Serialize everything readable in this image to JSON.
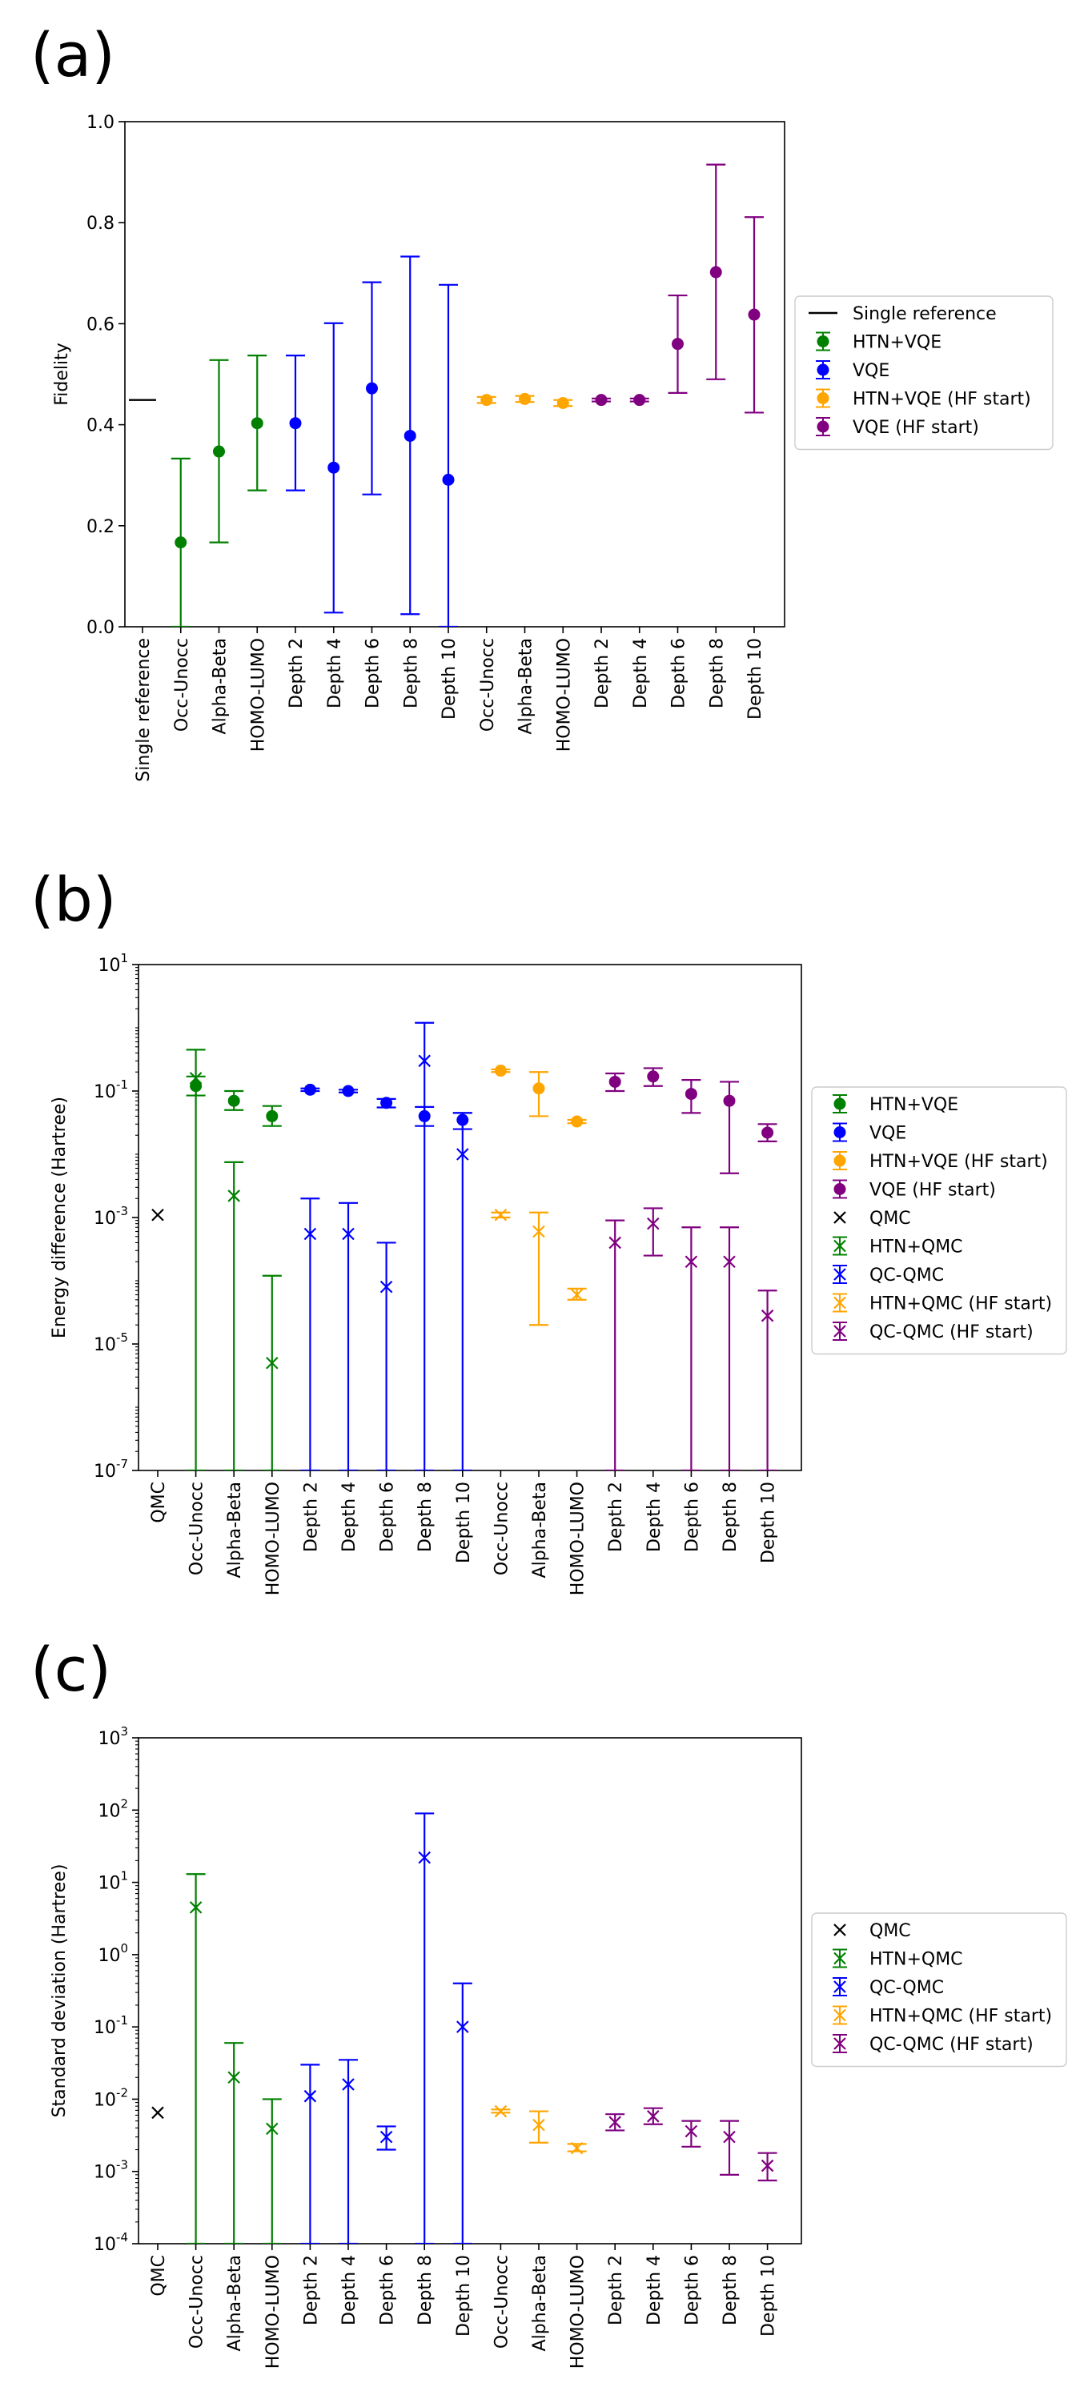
{
  "panels": [
    {
      "letter": "(a)",
      "chart_data": {
        "type": "scatter",
        "yscale": "linear",
        "ylabel": "Fidelity",
        "ylim": [
          0,
          1
        ],
        "yticks": [
          0,
          0.2,
          0.4,
          0.6,
          0.8,
          1.0
        ],
        "ytick_labels": [
          "0.0",
          "0.2",
          "0.4",
          "0.6",
          "0.8",
          "1.0"
        ],
        "categories": [
          "Single reference",
          "Occ-Unocc",
          "Alpha-Beta",
          "HOMO-LUMO",
          "Depth 2",
          "Depth 4",
          "Depth 6",
          "Depth 8",
          "Depth 10",
          "Occ-Unocc",
          "Alpha-Beta",
          "HOMO-LUMO",
          "Depth 2",
          "Depth 4",
          "Depth 6",
          "Depth 8",
          "Depth 10"
        ],
        "legend_placement": "right",
        "legend": [
          {
            "label": "Single reference",
            "color": "#000000",
            "marker": "line"
          },
          {
            "label": "HTN+VQE",
            "color": "#008000",
            "marker": "dot"
          },
          {
            "label": "VQE",
            "color": "#0000ff",
            "marker": "dot"
          },
          {
            "label": "HTN+VQE (HF start)",
            "color": "#ffa500",
            "marker": "dot"
          },
          {
            "label": "VQE (HF start)",
            "color": "#800080",
            "marker": "dot"
          }
        ],
        "series": [
          {
            "name": "Single reference",
            "color": "#000000",
            "marker": "hline",
            "points": [
              {
                "i": 0,
                "y": 0.449
              }
            ]
          },
          {
            "name": "HTN+VQE",
            "color": "#008000",
            "marker": "dot",
            "points": [
              {
                "i": 1,
                "y": 0.167,
                "lo": 0.0,
                "hi": 0.333
              },
              {
                "i": 2,
                "y": 0.347,
                "lo": 0.167,
                "hi": 0.528
              },
              {
                "i": 3,
                "y": 0.403,
                "lo": 0.27,
                "hi": 0.537
              }
            ]
          },
          {
            "name": "VQE",
            "color": "#0000ff",
            "marker": "dot",
            "points": [
              {
                "i": 4,
                "y": 0.403,
                "lo": 0.27,
                "hi": 0.537
              },
              {
                "i": 5,
                "y": 0.315,
                "lo": 0.028,
                "hi": 0.601
              },
              {
                "i": 6,
                "y": 0.472,
                "lo": 0.262,
                "hi": 0.682
              },
              {
                "i": 7,
                "y": 0.378,
                "lo": 0.025,
                "hi": 0.733
              },
              {
                "i": 8,
                "y": 0.291,
                "lo": 0.0,
                "hi": 0.677
              }
            ]
          },
          {
            "name": "HTN+VQE (HF start)",
            "color": "#ffa500",
            "marker": "dot",
            "points": [
              {
                "i": 9,
                "y": 0.449,
                "lo": 0.443,
                "hi": 0.455
              },
              {
                "i": 10,
                "y": 0.451,
                "lo": 0.445,
                "hi": 0.457
              },
              {
                "i": 11,
                "y": 0.443,
                "lo": 0.437,
                "hi": 0.449
              }
            ]
          },
          {
            "name": "VQE (HF start)",
            "color": "#800080",
            "marker": "dot",
            "points": [
              {
                "i": 12,
                "y": 0.449,
                "lo": 0.446,
                "hi": 0.452
              },
              {
                "i": 13,
                "y": 0.449,
                "lo": 0.446,
                "hi": 0.452
              },
              {
                "i": 14,
                "y": 0.56,
                "lo": 0.463,
                "hi": 0.656
              },
              {
                "i": 15,
                "y": 0.702,
                "lo": 0.49,
                "hi": 0.915
              },
              {
                "i": 16,
                "y": 0.618,
                "lo": 0.424,
                "hi": 0.811
              }
            ]
          }
        ]
      }
    },
    {
      "letter": "(b)",
      "chart_data": {
        "type": "scatter",
        "yscale": "log",
        "ylabel": "Energy difference (Hartree)",
        "ylim": [
          1e-07,
          10
        ],
        "ytick_exponents": [
          -7,
          -5,
          -3,
          -1,
          1
        ],
        "categories": [
          "QMC",
          "Occ-Unocc",
          "Alpha-Beta",
          "HOMO-LUMO",
          "Depth 2",
          "Depth 4",
          "Depth 6",
          "Depth 8",
          "Depth 10",
          "Occ-Unocc",
          "Alpha-Beta",
          "HOMO-LUMO",
          "Depth 2",
          "Depth 4",
          "Depth 6",
          "Depth 8",
          "Depth 10"
        ],
        "legend_placement": "right",
        "legend": [
          {
            "label": "HTN+VQE",
            "color": "#008000",
            "marker": "dot"
          },
          {
            "label": "VQE",
            "color": "#0000ff",
            "marker": "dot"
          },
          {
            "label": "HTN+VQE (HF start)",
            "color": "#ffa500",
            "marker": "dot"
          },
          {
            "label": "VQE (HF start)",
            "color": "#800080",
            "marker": "dot"
          },
          {
            "label": "QMC",
            "color": "#000000",
            "marker": "x-only"
          },
          {
            "label": "HTN+QMC",
            "color": "#008000",
            "marker": "x"
          },
          {
            "label": "QC-QMC",
            "color": "#0000ff",
            "marker": "x"
          },
          {
            "label": "HTN+QMC (HF start)",
            "color": "#ffa500",
            "marker": "x"
          },
          {
            "label": "QC-QMC (HF start)",
            "color": "#800080",
            "marker": "x"
          }
        ],
        "series": [
          {
            "name": "HTN+VQE",
            "color": "#008000",
            "marker": "dot",
            "points": [
              {
                "i": 1,
                "y": 0.12,
                "lo": 0.085,
                "hi": 0.17
              },
              {
                "i": 2,
                "y": 0.07,
                "lo": 0.05,
                "hi": 0.1
              },
              {
                "i": 3,
                "y": 0.04,
                "lo": 0.028,
                "hi": 0.058
              }
            ]
          },
          {
            "name": "VQE",
            "color": "#0000ff",
            "marker": "dot",
            "points": [
              {
                "i": 4,
                "y": 0.105,
                "lo": 0.1,
                "hi": 0.11
              },
              {
                "i": 5,
                "y": 0.1,
                "lo": 0.095,
                "hi": 0.105
              },
              {
                "i": 6,
                "y": 0.065,
                "lo": 0.055,
                "hi": 0.075
              },
              {
                "i": 7,
                "y": 0.04,
                "lo": 0.028,
                "hi": 0.056
              },
              {
                "i": 8,
                "y": 0.035,
                "lo": 0.025,
                "hi": 0.045
              }
            ]
          },
          {
            "name": "HTN+VQE (HF start)",
            "color": "#ffa500",
            "marker": "dot",
            "points": [
              {
                "i": 9,
                "y": 0.21,
                "lo": 0.2,
                "hi": 0.22
              },
              {
                "i": 10,
                "y": 0.11,
                "lo": 0.04,
                "hi": 0.2
              },
              {
                "i": 11,
                "y": 0.033,
                "lo": 0.031,
                "hi": 0.035
              }
            ]
          },
          {
            "name": "VQE (HF start)",
            "color": "#800080",
            "marker": "dot",
            "points": [
              {
                "i": 12,
                "y": 0.14,
                "lo": 0.1,
                "hi": 0.19
              },
              {
                "i": 13,
                "y": 0.17,
                "lo": 0.12,
                "hi": 0.23
              },
              {
                "i": 14,
                "y": 0.09,
                "lo": 0.045,
                "hi": 0.15
              },
              {
                "i": 15,
                "y": 0.07,
                "lo": 0.005,
                "hi": 0.14
              },
              {
                "i": 16,
                "y": 0.022,
                "lo": 0.016,
                "hi": 0.03
              }
            ]
          },
          {
            "name": "QMC",
            "color": "#000000",
            "marker": "x-only",
            "points": [
              {
                "i": 0,
                "y": 0.0011
              }
            ]
          },
          {
            "name": "HTN+QMC",
            "color": "#008000",
            "marker": "x",
            "points": [
              {
                "i": 1,
                "y": 0.16,
                "lo": 1e-07,
                "hi": 0.45
              },
              {
                "i": 2,
                "y": 0.0022,
                "lo": 1e-07,
                "hi": 0.0075
              },
              {
                "i": 3,
                "y": 5e-06,
                "lo": 1e-07,
                "hi": 0.00012
              }
            ]
          },
          {
            "name": "QC-QMC",
            "color": "#0000ff",
            "marker": "x",
            "points": [
              {
                "i": 4,
                "y": 0.00055,
                "lo": 1e-07,
                "hi": 0.002
              },
              {
                "i": 5,
                "y": 0.00055,
                "lo": 1e-07,
                "hi": 0.0017
              },
              {
                "i": 6,
                "y": 8e-05,
                "lo": 1e-07,
                "hi": 0.0004
              },
              {
                "i": 7,
                "y": 0.3,
                "lo": 1e-07,
                "hi": 1.2
              },
              {
                "i": 8,
                "y": 0.01,
                "lo": 1e-07,
                "hi": 0.045
              }
            ]
          },
          {
            "name": "HTN+QMC (HF start)",
            "color": "#ffa500",
            "marker": "x",
            "points": [
              {
                "i": 9,
                "y": 0.0011,
                "lo": 0.001,
                "hi": 0.0012
              },
              {
                "i": 10,
                "y": 0.0006,
                "lo": 2e-05,
                "hi": 0.0012
              },
              {
                "i": 11,
                "y": 6e-05,
                "lo": 5e-05,
                "hi": 7.5e-05
              }
            ]
          },
          {
            "name": "QC-QMC (HF start)",
            "color": "#800080",
            "marker": "x",
            "points": [
              {
                "i": 12,
                "y": 0.0004,
                "lo": 1e-07,
                "hi": 0.0009
              },
              {
                "i": 13,
                "y": 0.0008,
                "lo": 0.00025,
                "hi": 0.0014
              },
              {
                "i": 14,
                "y": 0.0002,
                "lo": 1e-07,
                "hi": 0.0007
              },
              {
                "i": 15,
                "y": 0.0002,
                "lo": 1e-07,
                "hi": 0.0007
              },
              {
                "i": 16,
                "y": 2.8e-05,
                "lo": 1e-07,
                "hi": 7e-05
              }
            ]
          }
        ]
      }
    },
    {
      "letter": "(c)",
      "chart_data": {
        "type": "scatter",
        "yscale": "log",
        "ylabel": "Standard deviation (Hartree)",
        "ylim": [
          0.0001,
          1000
        ],
        "ytick_exponents": [
          -4,
          -3,
          -2,
          -1,
          0,
          1,
          2,
          3
        ],
        "categories": [
          "QMC",
          "Occ-Unocc",
          "Alpha-Beta",
          "HOMO-LUMO",
          "Depth 2",
          "Depth 4",
          "Depth 6",
          "Depth 8",
          "Depth 10",
          "Occ-Unocc",
          "Alpha-Beta",
          "HOMO-LUMO",
          "Depth 2",
          "Depth 4",
          "Depth 6",
          "Depth 8",
          "Depth 10"
        ],
        "legend_placement": "right",
        "legend": [
          {
            "label": "QMC",
            "color": "#000000",
            "marker": "x-only"
          },
          {
            "label": "HTN+QMC",
            "color": "#008000",
            "marker": "x"
          },
          {
            "label": "QC-QMC",
            "color": "#0000ff",
            "marker": "x"
          },
          {
            "label": "HTN+QMC (HF start)",
            "color": "#ffa500",
            "marker": "x"
          },
          {
            "label": "QC-QMC (HF start)",
            "color": "#800080",
            "marker": "x"
          }
        ],
        "series": [
          {
            "name": "QMC",
            "color": "#000000",
            "marker": "x-only",
            "points": [
              {
                "i": 0,
                "y": 0.0065
              }
            ]
          },
          {
            "name": "HTN+QMC",
            "color": "#008000",
            "marker": "x",
            "points": [
              {
                "i": 1,
                "y": 4.5,
                "lo": 0.0001,
                "hi": 13
              },
              {
                "i": 2,
                "y": 0.02,
                "lo": 0.0001,
                "hi": 0.06
              },
              {
                "i": 3,
                "y": 0.0039,
                "lo": 0.0001,
                "hi": 0.01
              }
            ]
          },
          {
            "name": "QC-QMC",
            "color": "#0000ff",
            "marker": "x",
            "points": [
              {
                "i": 4,
                "y": 0.011,
                "lo": 0.0001,
                "hi": 0.03
              },
              {
                "i": 5,
                "y": 0.016,
                "lo": 0.0001,
                "hi": 0.035
              },
              {
                "i": 6,
                "y": 0.003,
                "lo": 0.002,
                "hi": 0.0042
              },
              {
                "i": 7,
                "y": 22,
                "lo": 0.0001,
                "hi": 90
              },
              {
                "i": 8,
                "y": 0.1,
                "lo": 0.0001,
                "hi": 0.4
              }
            ]
          },
          {
            "name": "HTN+QMC (HF start)",
            "color": "#ffa500",
            "marker": "x",
            "points": [
              {
                "i": 9,
                "y": 0.0068,
                "lo": 0.0065,
                "hi": 0.0072
              },
              {
                "i": 10,
                "y": 0.0044,
                "lo": 0.0025,
                "hi": 0.0068
              },
              {
                "i": 11,
                "y": 0.0021,
                "lo": 0.0019,
                "hi": 0.0024
              }
            ]
          },
          {
            "name": "QC-QMC (HF start)",
            "color": "#800080",
            "marker": "x",
            "points": [
              {
                "i": 12,
                "y": 0.0048,
                "lo": 0.0037,
                "hi": 0.0062
              },
              {
                "i": 13,
                "y": 0.0058,
                "lo": 0.0045,
                "hi": 0.0075
              },
              {
                "i": 14,
                "y": 0.0036,
                "lo": 0.0022,
                "hi": 0.005
              },
              {
                "i": 15,
                "y": 0.003,
                "lo": 0.0009,
                "hi": 0.005
              },
              {
                "i": 16,
                "y": 0.0012,
                "lo": 0.00075,
                "hi": 0.0018
              }
            ]
          }
        ]
      }
    }
  ]
}
